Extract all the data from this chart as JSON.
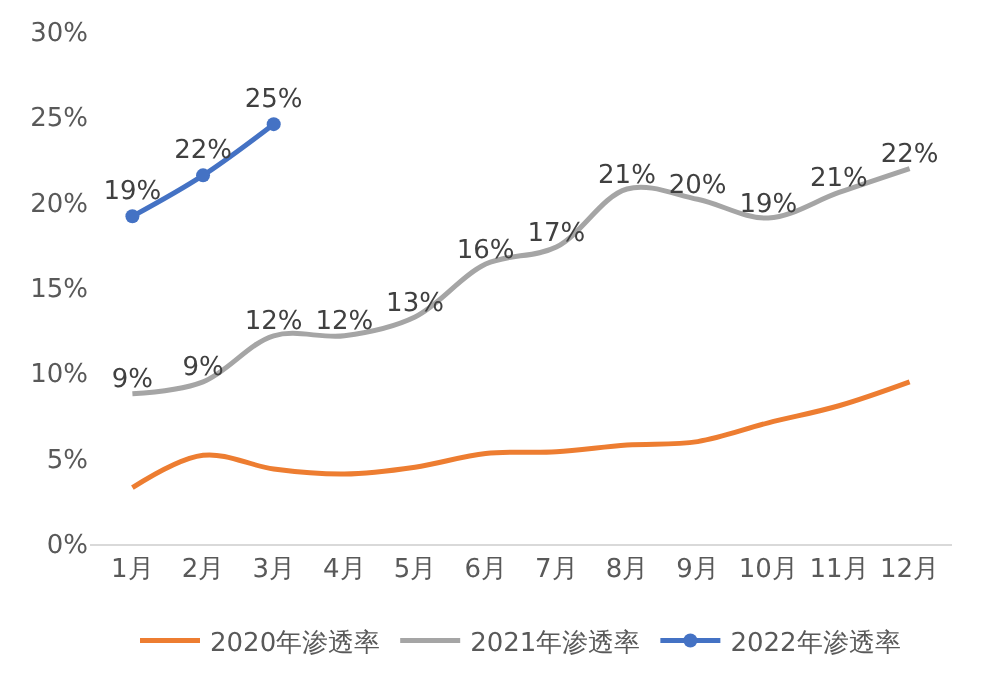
{
  "chart_data": {
    "type": "line",
    "categories": [
      "1月",
      "2月",
      "3月",
      "4月",
      "5月",
      "6月",
      "7月",
      "8月",
      "9月",
      "10月",
      "11月",
      "12月"
    ],
    "ylim": [
      0,
      30
    ],
    "yticks": [
      {
        "value": 0,
        "label": "0%"
      },
      {
        "value": 5,
        "label": "5%"
      },
      {
        "value": 10,
        "label": "10%"
      },
      {
        "value": 15,
        "label": "15%"
      },
      {
        "value": 20,
        "label": "20%"
      },
      {
        "value": 25,
        "label": "25%"
      },
      {
        "value": 30,
        "label": "30%"
      }
    ],
    "legend": "bottom",
    "series": [
      {
        "name": "2020年渗透率",
        "color": "#ed7d31",
        "marker": "none",
        "values": [
          3.3,
          5.2,
          4.4,
          4.1,
          4.5,
          5.3,
          5.4,
          5.8,
          6.0,
          7.1,
          8.1,
          9.5
        ]
      },
      {
        "name": "2021年渗透率",
        "color": "#a5a5a5",
        "marker": "none",
        "values": [
          8.8,
          9.5,
          12.2,
          12.2,
          13.3,
          16.4,
          17.4,
          20.8,
          20.2,
          19.1,
          20.6,
          22.0
        ],
        "value_labels": [
          "9%",
          "9%",
          "12%",
          "12%",
          "13%",
          "16%",
          "17%",
          "21%",
          "20%",
          "19%",
          "21%",
          "22%"
        ]
      },
      {
        "name": "2022年渗透率",
        "color": "#4472c4",
        "marker": "circle",
        "values": [
          19.2,
          21.6,
          24.6,
          null,
          null,
          null,
          null,
          null,
          null,
          null,
          null,
          null
        ],
        "value_labels": [
          "19%",
          "22%",
          "25%",
          null,
          null,
          null,
          null,
          null,
          null,
          null,
          null,
          null
        ]
      }
    ]
  }
}
